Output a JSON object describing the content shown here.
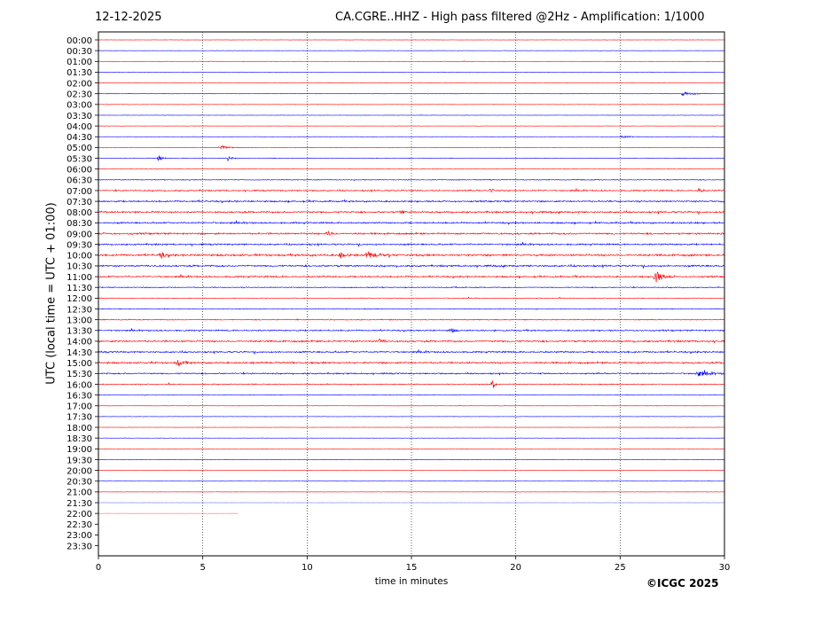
{
  "header": {
    "date": "12-12-2025",
    "title": "CA.CGRE..HHZ - High pass filtered @2Hz - Amplification: 1/1000"
  },
  "footer": {
    "credit": "©ICGC 2025"
  },
  "colors": {
    "red_trace": "#ff0000",
    "blue_trace": "#0000ff",
    "grid": "#000000"
  },
  "chart_data": {
    "type": "line",
    "title": "CA.CGRE..HHZ - High pass filtered @2Hz - Amplification: 1/1000",
    "xlabel": "time in minutes",
    "ylabel": "UTC (local time = UTC + 01:00)",
    "xlim": [
      0,
      30
    ],
    "x_ticks": [
      0,
      5,
      10,
      15,
      20,
      25,
      30
    ],
    "x_tick_labels": [
      "0",
      "5",
      "10",
      "15",
      "20",
      "25",
      "30"
    ],
    "grid": "vertical dotted lines at 5, 10, 15, 20, 25",
    "y_tick_labels": [
      "00:00",
      "00:30",
      "01:00",
      "01:30",
      "02:00",
      "02:30",
      "03:00",
      "03:30",
      "04:00",
      "04:30",
      "05:00",
      "05:30",
      "06:00",
      "06:30",
      "07:00",
      "07:30",
      "08:00",
      "08:30",
      "09:00",
      "09:30",
      "10:00",
      "10:30",
      "11:00",
      "11:30",
      "12:00",
      "12:30",
      "13:00",
      "13:30",
      "14:00",
      "14:30",
      "15:00",
      "15:30",
      "16:00",
      "16:30",
      "17:00",
      "17:30",
      "18:00",
      "18:30",
      "19:00",
      "19:30",
      "20:00",
      "20:30",
      "21:00",
      "21:30",
      "22:00",
      "22:30",
      "23:00",
      "23:30"
    ],
    "trace_color_pattern": "alternating red (full hour) and blue (half hour)",
    "traces_end_minute": {
      "21:30": 30,
      "22:00": 6.7
    },
    "noise_level": {
      "00:00": 0.15,
      "00:30": 0.15,
      "01:00": 0.2,
      "01:30": 0.2,
      "02:00": 0.2,
      "02:30": 0.2,
      "03:00": 0.2,
      "03:30": 0.15,
      "04:00": 0.15,
      "04:30": 0.2,
      "05:00": 0.2,
      "05:30": 0.3,
      "06:00": 0.25,
      "06:30": 0.4,
      "07:00": 0.7,
      "07:30": 0.8,
      "08:00": 0.9,
      "08:30": 0.8,
      "09:00": 0.9,
      "09:30": 0.8,
      "10:00": 1.0,
      "10:30": 0.9,
      "11:00": 0.8,
      "11:30": 0.5,
      "12:00": 0.35,
      "12:30": 0.4,
      "13:00": 0.5,
      "13:30": 0.7,
      "14:00": 0.9,
      "14:30": 0.8,
      "15:00": 0.9,
      "15:30": 0.7,
      "16:00": 0.5,
      "16:30": 0.3,
      "17:00": 0.2,
      "17:30": 0.2,
      "18:00": 0.15,
      "18:30": 0.15,
      "19:00": 0.15,
      "19:30": 0.15,
      "20:00": 0.15,
      "20:30": 0.15,
      "21:00": 0.15,
      "21:30": 0.1,
      "22:00": 0.1
    },
    "events": [
      {
        "row": "02:30",
        "minute": 28.0,
        "amplitude": 2.0,
        "duration": 1.4
      },
      {
        "row": "04:30",
        "minute": 25.1,
        "amplitude": 1.2,
        "duration": 1.2
      },
      {
        "row": "05:00",
        "minute": 5.8,
        "amplitude": 2.5,
        "duration": 1.3
      },
      {
        "row": "05:30",
        "minute": 2.9,
        "amplitude": 3.0,
        "duration": 0.5
      },
      {
        "row": "05:30",
        "minute": 6.2,
        "amplitude": 3.0,
        "duration": 0.6
      },
      {
        "row": "07:00",
        "minute": 18.8,
        "amplitude": 2.0,
        "duration": 0.6
      },
      {
        "row": "07:00",
        "minute": 28.8,
        "amplitude": 3.0,
        "duration": 0.3
      },
      {
        "row": "08:00",
        "minute": 14.5,
        "amplitude": 2.5,
        "duration": 0.4
      },
      {
        "row": "09:00",
        "minute": 11.0,
        "amplitude": 2.5,
        "duration": 0.5
      },
      {
        "row": "10:00",
        "minute": 3.0,
        "amplitude": 3.0,
        "duration": 0.5
      },
      {
        "row": "10:00",
        "minute": 11.6,
        "amplitude": 3.0,
        "duration": 0.5
      },
      {
        "row": "10:00",
        "minute": 12.9,
        "amplitude": 4.0,
        "duration": 1.1
      },
      {
        "row": "11:00",
        "minute": 26.7,
        "amplitude": 7.0,
        "duration": 0.9
      },
      {
        "row": "13:30",
        "minute": 16.9,
        "amplitude": 3.0,
        "duration": 0.4
      },
      {
        "row": "14:00",
        "minute": 13.5,
        "amplitude": 2.5,
        "duration": 0.6
      },
      {
        "row": "15:00",
        "minute": 3.8,
        "amplitude": 3.5,
        "duration": 0.7
      },
      {
        "row": "15:30",
        "minute": 28.7,
        "amplitude": 3.0,
        "duration": 1.5
      },
      {
        "row": "16:00",
        "minute": 18.9,
        "amplitude": 6.0,
        "duration": 0.2
      }
    ]
  }
}
